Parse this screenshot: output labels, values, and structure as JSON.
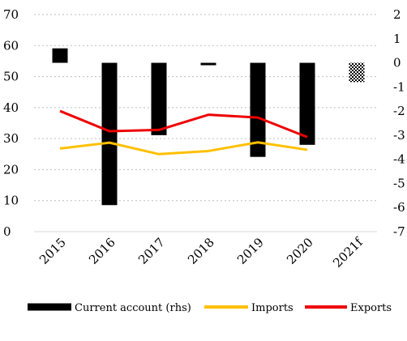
{
  "chart_data": {
    "type": "bar+line",
    "categories": [
      "2015",
      "2016",
      "2017",
      "2018",
      "2019",
      "2020",
      "2021f"
    ],
    "left_axis": {
      "min": 0,
      "max": 70,
      "ticks": [
        0,
        10,
        20,
        30,
        40,
        50,
        60,
        70
      ]
    },
    "right_axis": {
      "min": -7,
      "max": 2,
      "ticks": [
        -7,
        -6,
        -5,
        -4,
        -3,
        -2,
        -1,
        0,
        1,
        2
      ]
    },
    "series": [
      {
        "name": "Current account (rhs)",
        "type": "bar",
        "axis": "right",
        "color": "#000000",
        "values": [
          0.6,
          -5.9,
          -3.0,
          -0.1,
          -3.9,
          -3.4,
          -0.8
        ],
        "patterned": [
          false,
          false,
          false,
          false,
          false,
          false,
          true
        ]
      },
      {
        "name": "Imports",
        "type": "line",
        "axis": "left",
        "color": "#FFC000",
        "values": [
          26.8,
          28.7,
          25.0,
          26.0,
          28.8,
          26.4,
          null
        ]
      },
      {
        "name": "Exports",
        "type": "line",
        "axis": "left",
        "color": "#EE0000",
        "values": [
          38.9,
          32.4,
          32.8,
          37.7,
          36.8,
          30.5,
          null
        ]
      }
    ],
    "grid": {
      "horizontal": true,
      "style": "dotted"
    },
    "legend": {
      "position": "bottom"
    }
  }
}
